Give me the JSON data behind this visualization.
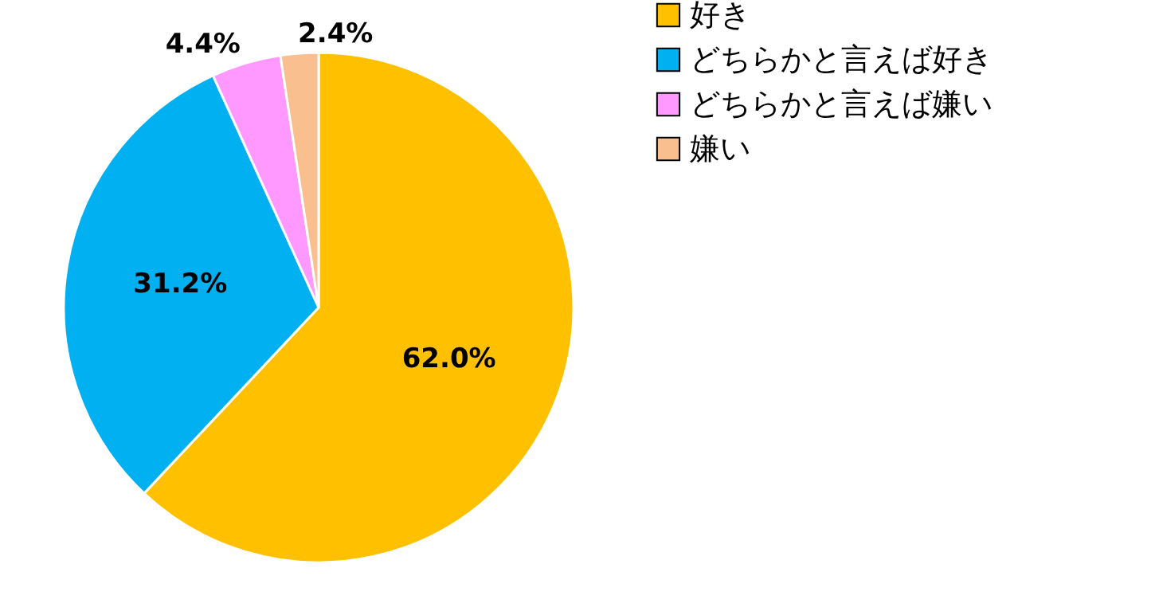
{
  "chart_data": {
    "type": "pie",
    "categories": [
      "好き",
      "どちらかと言えば好き",
      "どちらかと言えば嫌い",
      "嫌い"
    ],
    "values": [
      62.0,
      31.2,
      4.4,
      2.4
    ],
    "colors": [
      "#ffc000",
      "#00b0f0",
      "#ff99ff",
      "#fabf8f"
    ],
    "value_labels": [
      "62.0%",
      "31.2%",
      "4.4%",
      "2.4%"
    ],
    "legend": "right"
  }
}
